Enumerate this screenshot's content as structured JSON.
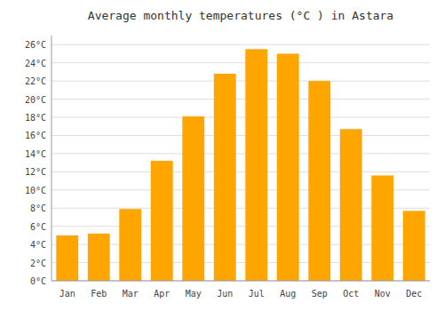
{
  "chart_data": {
    "type": "bar",
    "title": "Average monthly temperatures (°C ) in Astara",
    "categories": [
      "Jan",
      "Feb",
      "Mar",
      "Apr",
      "May",
      "Jun",
      "Jul",
      "Aug",
      "Sep",
      "Oct",
      "Nov",
      "Dec"
    ],
    "values": [
      5.0,
      5.2,
      7.9,
      13.2,
      18.1,
      22.8,
      25.5,
      25.0,
      22.0,
      16.7,
      11.6,
      7.7
    ],
    "color": "#FFA500",
    "ylim": [
      0,
      27
    ],
    "yticks": [
      {
        "value": 0,
        "label": "0°C"
      },
      {
        "value": 2,
        "label": "2°C"
      },
      {
        "value": 4,
        "label": "4°C"
      },
      {
        "value": 6,
        "label": "6°C"
      },
      {
        "value": 8,
        "label": "8°C"
      },
      {
        "value": 10,
        "label": "10°C"
      },
      {
        "value": 12,
        "label": "12°C"
      },
      {
        "value": 14,
        "label": "14°C"
      },
      {
        "value": 16,
        "label": "16°C"
      },
      {
        "value": 18,
        "label": "18°C"
      },
      {
        "value": 20,
        "label": "20°C"
      },
      {
        "value": 22,
        "label": "22°C"
      },
      {
        "value": 24,
        "label": "24°C"
      },
      {
        "value": 26,
        "label": "26°C"
      }
    ],
    "grid": true
  }
}
